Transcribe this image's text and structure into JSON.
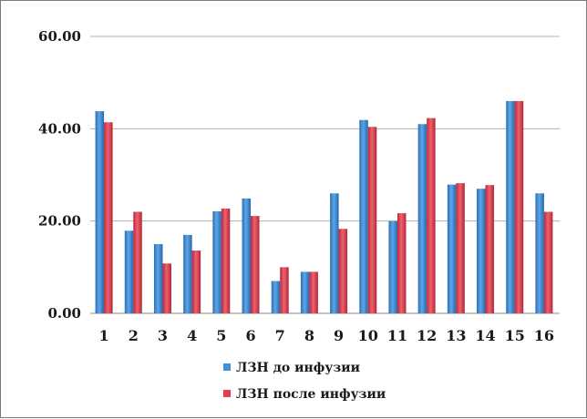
{
  "chart_data": {
    "type": "bar",
    "title": "",
    "xlabel": "",
    "ylabel": "",
    "ylim": [
      0,
      60
    ],
    "yticks": [
      "0.00",
      "20.00",
      "40.00",
      "60.00"
    ],
    "grid": true,
    "legend_position": "bottom",
    "categories": [
      "1",
      "2",
      "3",
      "4",
      "5",
      "6",
      "7",
      "8",
      "9",
      "10",
      "11",
      "12",
      "13",
      "14",
      "15",
      "16"
    ],
    "series": [
      {
        "name": "ЛЗН до инфузии",
        "color": "#3f8fd8",
        "values": [
          43.8,
          17.9,
          15.0,
          17.0,
          22.1,
          24.9,
          7.0,
          9.0,
          26.0,
          41.9,
          20.0,
          41.0,
          27.9,
          27.0,
          46.0,
          26.0
        ]
      },
      {
        "name": "ЛЗН после инфузии",
        "color": "#e04050",
        "values": [
          41.4,
          22.0,
          10.8,
          13.6,
          22.7,
          21.1,
          10.0,
          9.0,
          18.3,
          40.4,
          21.7,
          42.3,
          28.2,
          27.8,
          46.0,
          22.0
        ]
      }
    ]
  }
}
